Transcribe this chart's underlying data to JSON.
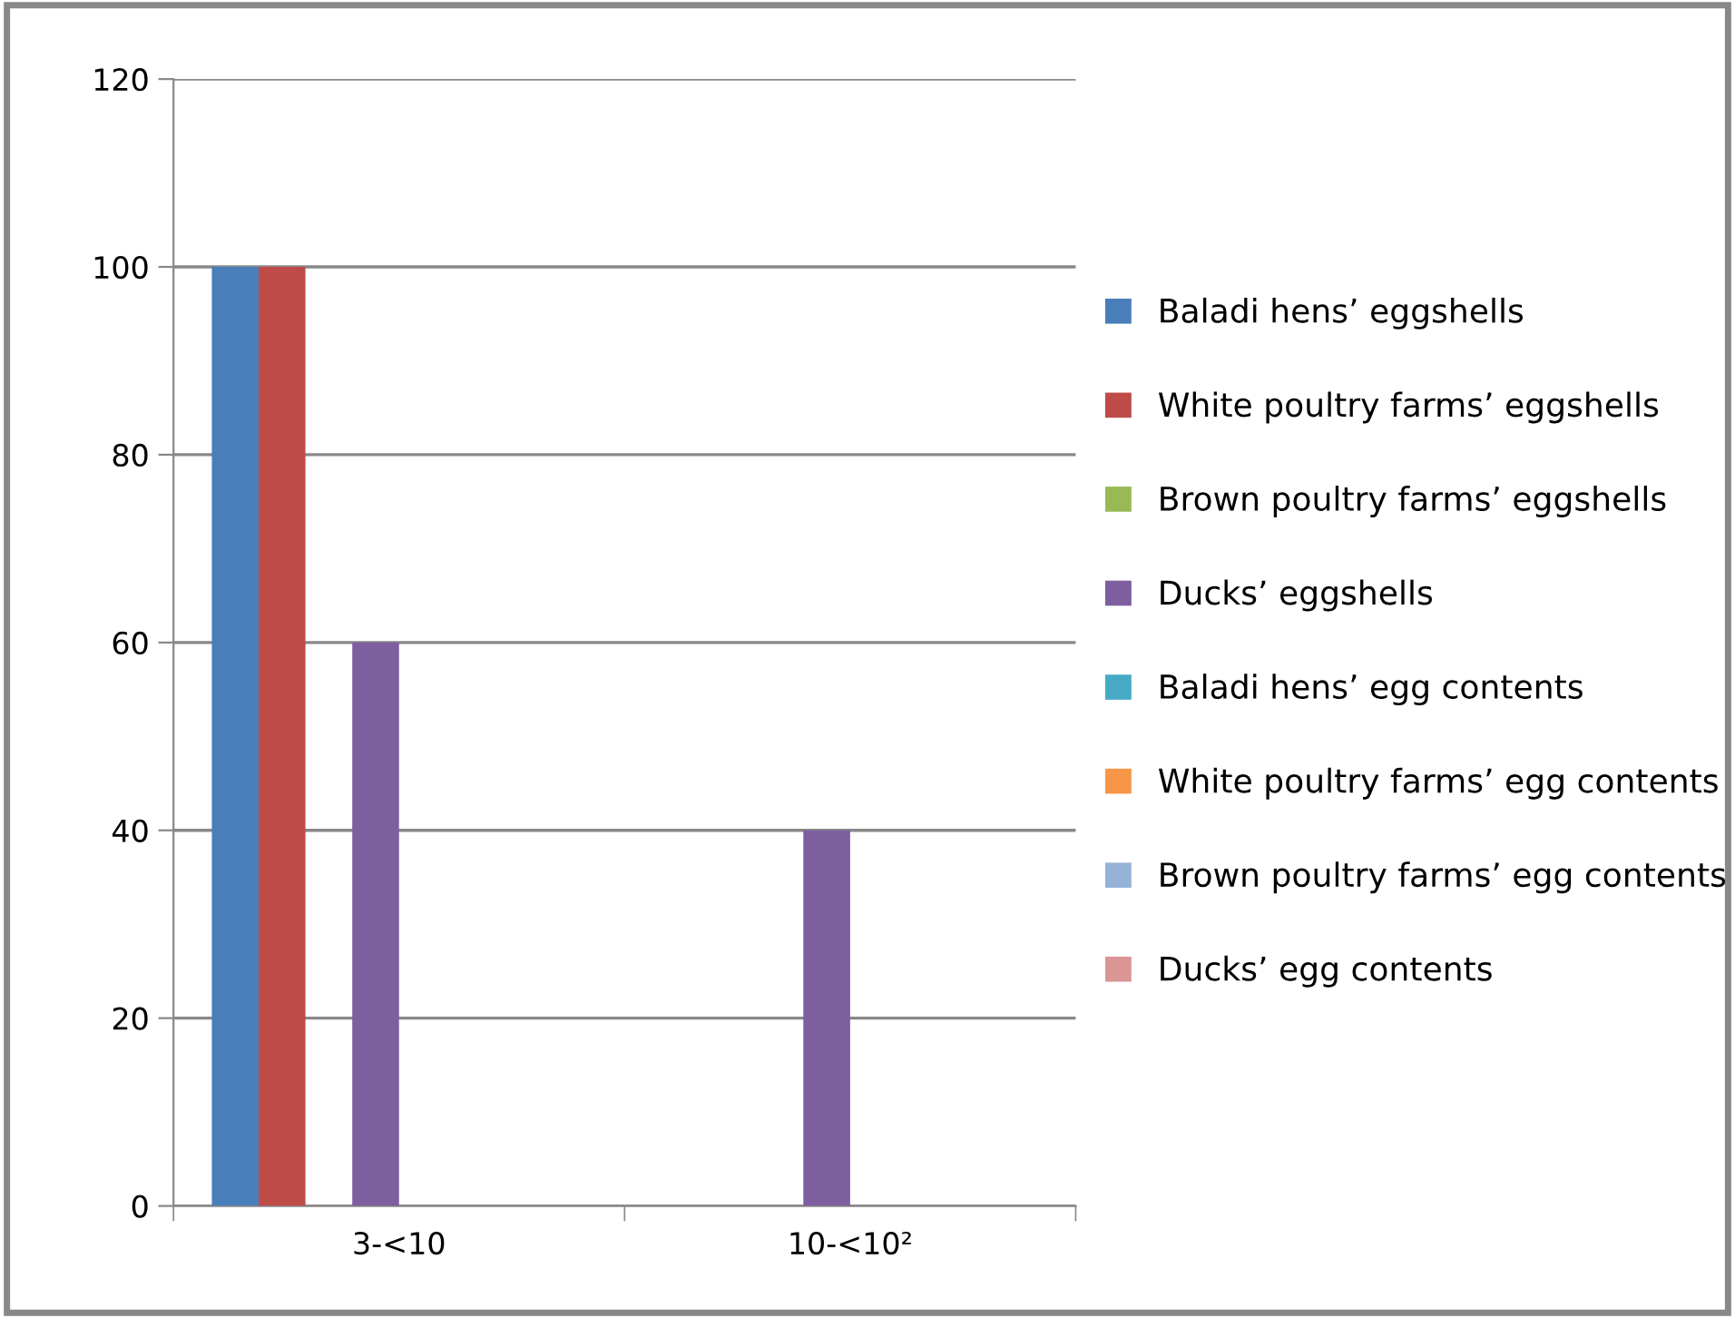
{
  "chart_data": {
    "type": "bar",
    "categories": [
      "3-<10",
      "10-<10²"
    ],
    "series": [
      {
        "name": "Baladi hens’ eggshells",
        "color": "#4a7ebb",
        "values": [
          100,
          0
        ]
      },
      {
        "name": "White poultry farms’ eggshells",
        "color": "#be4b48",
        "values": [
          100,
          0
        ]
      },
      {
        "name": "Brown poultry farms’ eggshells",
        "color": "#98b954",
        "values": [
          0,
          0
        ]
      },
      {
        "name": "Ducks’ eggshells",
        "color": "#7d5fa0",
        "values": [
          60,
          40
        ]
      },
      {
        "name": "Baladi hens’ egg contents",
        "color": "#46aac5",
        "values": [
          0,
          0
        ]
      },
      {
        "name": "White poultry farms’ egg contents",
        "color": "#f79646",
        "values": [
          0,
          0
        ]
      },
      {
        "name": "Brown poultry farms’ egg contents",
        "color": "#95b3d7",
        "values": [
          0,
          0
        ]
      },
      {
        "name": "Ducks’ egg contents",
        "color": "#d99694",
        "values": [
          0,
          0
        ]
      }
    ],
    "ylim": [
      0,
      120
    ],
    "yticks": [
      0,
      20,
      40,
      60,
      80,
      100,
      120
    ],
    "grid": "y",
    "legend": "right"
  }
}
